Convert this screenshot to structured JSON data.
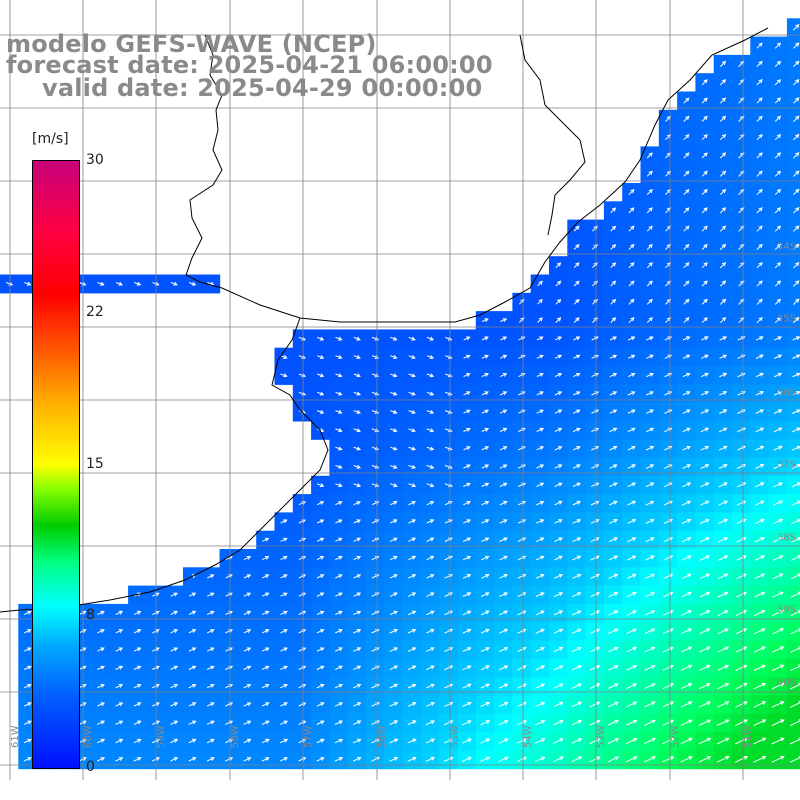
{
  "header": {
    "line1": "modelo GEFS-WAVE (NCEP)",
    "line2": "forecast date: 2025-04-21 06:00:00",
    "line3": "valid date: 2025-04-29 00:00:00"
  },
  "colorbar": {
    "unit": "[m/s]",
    "ticks": [
      "30",
      "22",
      "15",
      "8",
      "0"
    ],
    "tick_values": [
      30,
      22,
      15,
      8,
      0
    ],
    "range": [
      0,
      30
    ]
  },
  "map": {
    "lat_labels": [
      "34S",
      "35S",
      "36S",
      "37S",
      "38S",
      "39S",
      "40S"
    ],
    "lon_labels": [
      "61W",
      "60W",
      "59W",
      "58W",
      "57W",
      "56W",
      "55W",
      "54W",
      "53W",
      "52W",
      "51W"
    ],
    "colors": {
      "land": "#ffffff",
      "coast": "#000000",
      "grid": "#808080",
      "arrow": "#ffffff"
    }
  }
}
